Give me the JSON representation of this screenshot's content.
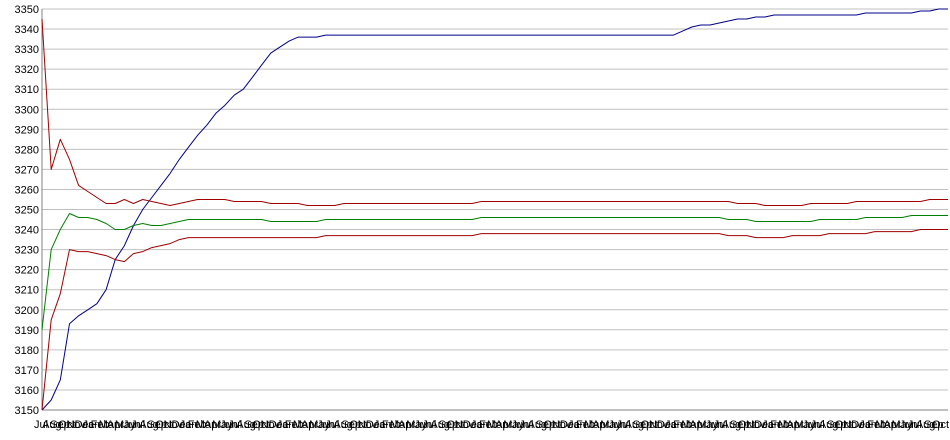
{
  "chart_data": {
    "type": "line",
    "title": "",
    "xlabel": "",
    "ylabel": "",
    "ylim": [
      3150,
      3350
    ],
    "yticks": [
      3150,
      3160,
      3170,
      3180,
      3190,
      3200,
      3210,
      3220,
      3230,
      3240,
      3250,
      3260,
      3270,
      3280,
      3290,
      3300,
      3310,
      3320,
      3330,
      3340,
      3350
    ],
    "grid": true,
    "legend": "none",
    "x_tick_labels": [
      "Jul",
      "Aug",
      "Sep",
      "Oct",
      "Nov",
      "Dec",
      "Jan",
      "Feb",
      "Mar",
      "Apr",
      "May",
      "Jun",
      "Jul",
      "Aug",
      "Sep",
      "Oct",
      "Nov",
      "Dec",
      "Jan",
      "Feb",
      "Mar",
      "Apr",
      "May",
      "Jun",
      "Jul",
      "Aug",
      "Sep",
      "Oct",
      "Nov",
      "Dec",
      "Jan",
      "Feb",
      "Mar",
      "Apr",
      "May",
      "Jun",
      "Jul",
      "Aug",
      "Sep",
      "Oct",
      "Nov",
      "Dec",
      "Jan",
      "Feb",
      "Mar",
      "Apr",
      "May",
      "Jun",
      "Jul",
      "Aug",
      "Sep",
      "Oct",
      "Nov",
      "Dec",
      "Jan",
      "Feb",
      "Mar",
      "Apr",
      "May",
      "Jun",
      "Jul",
      "Aug",
      "Sep",
      "Oct",
      "Nov",
      "Dec",
      "Jan",
      "Feb",
      "Mar",
      "Apr",
      "May",
      "Jun",
      "Jul",
      "Aug",
      "Sep",
      "Oct",
      "Nov",
      "Dec",
      "Jan",
      "Feb",
      "Mar",
      "Apr",
      "May",
      "Jun",
      "Jul",
      "Aug",
      "Sep",
      "Oct",
      "Nov",
      "Dec",
      "Jan",
      "Feb",
      "Mar",
      "Apr",
      "May",
      "Jun",
      "Jul",
      "Aug",
      "Sep",
      "Oct",
      "Nov",
      "Dec",
      "Jan",
      "Feb",
      "Mar",
      "Apr",
      "May",
      "Jun",
      "Jul",
      "Aug",
      "Sep",
      "Oct"
    ],
    "x_count": 100,
    "series": [
      {
        "color": "#00008b",
        "values": [
          3150,
          3155,
          3165,
          3193,
          3197,
          3200,
          3203,
          3210,
          3225,
          3232,
          3242,
          3250,
          3256,
          3262,
          3268,
          3275,
          3281,
          3287,
          3292,
          3298,
          3302,
          3307,
          3310,
          3316,
          3322,
          3328,
          3331,
          3334,
          3336,
          3336,
          3336,
          3337,
          3337,
          3337,
          3337,
          3337,
          3337,
          3337,
          3337,
          3337,
          3337,
          3337,
          3337,
          3337,
          3337,
          3337,
          3337,
          3337,
          3337,
          3337,
          3337,
          3337,
          3337,
          3337,
          3337,
          3337,
          3337,
          3337,
          3337,
          3337,
          3337,
          3337,
          3337,
          3337,
          3337,
          3337,
          3337,
          3337,
          3337,
          3337,
          3339,
          3341,
          3342,
          3342,
          3343,
          3344,
          3345,
          3345,
          3346,
          3346,
          3347,
          3347,
          3347,
          3347,
          3347,
          3347,
          3347,
          3347,
          3347,
          3347,
          3348,
          3348,
          3348,
          3348,
          3348,
          3348,
          3349,
          3349,
          3350,
          3350
        ]
      },
      {
        "color": "#a00000",
        "values": [
          3345,
          3270,
          3285,
          3275,
          3262,
          3259,
          3256,
          3253,
          3253,
          3255,
          3253,
          3255,
          3254,
          3253,
          3252,
          3253,
          3254,
          3255,
          3255,
          3255,
          3255,
          3254,
          3254,
          3254,
          3254,
          3253,
          3253,
          3253,
          3253,
          3252,
          3252,
          3252,
          3252,
          3253,
          3253,
          3253,
          3253,
          3253,
          3253,
          3253,
          3253,
          3253,
          3253,
          3253,
          3253,
          3253,
          3253,
          3253,
          3254,
          3254,
          3254,
          3254,
          3254,
          3254,
          3254,
          3254,
          3254,
          3254,
          3254,
          3254,
          3254,
          3254,
          3254,
          3254,
          3254,
          3254,
          3254,
          3254,
          3254,
          3254,
          3254,
          3254,
          3254,
          3254,
          3254,
          3254,
          3253,
          3253,
          3253,
          3252,
          3252,
          3252,
          3252,
          3252,
          3253,
          3253,
          3253,
          3253,
          3253,
          3254,
          3254,
          3254,
          3254,
          3254,
          3254,
          3254,
          3254,
          3255,
          3255,
          3255
        ]
      },
      {
        "color": "#008000",
        "values": [
          3190,
          3230,
          3240,
          3248,
          3246,
          3246,
          3245,
          3243,
          3240,
          3240,
          3242,
          3243,
          3242,
          3242,
          3243,
          3244,
          3245,
          3245,
          3245,
          3245,
          3245,
          3245,
          3245,
          3245,
          3245,
          3244,
          3244,
          3244,
          3244,
          3244,
          3244,
          3245,
          3245,
          3245,
          3245,
          3245,
          3245,
          3245,
          3245,
          3245,
          3245,
          3245,
          3245,
          3245,
          3245,
          3245,
          3245,
          3245,
          3246,
          3246,
          3246,
          3246,
          3246,
          3246,
          3246,
          3246,
          3246,
          3246,
          3246,
          3246,
          3246,
          3246,
          3246,
          3246,
          3246,
          3246,
          3246,
          3246,
          3246,
          3246,
          3246,
          3246,
          3246,
          3246,
          3246,
          3245,
          3245,
          3245,
          3244,
          3244,
          3244,
          3244,
          3244,
          3244,
          3244,
          3245,
          3245,
          3245,
          3245,
          3245,
          3246,
          3246,
          3246,
          3246,
          3246,
          3247,
          3247,
          3247,
          3247,
          3247
        ]
      },
      {
        "color": "#a00000",
        "values": [
          3150,
          3195,
          3208,
          3230,
          3229,
          3229,
          3228,
          3227,
          3225,
          3224,
          3228,
          3229,
          3231,
          3232,
          3233,
          3235,
          3236,
          3236,
          3236,
          3236,
          3236,
          3236,
          3236,
          3236,
          3236,
          3236,
          3236,
          3236,
          3236,
          3236,
          3236,
          3237,
          3237,
          3237,
          3237,
          3237,
          3237,
          3237,
          3237,
          3237,
          3237,
          3237,
          3237,
          3237,
          3237,
          3237,
          3237,
          3237,
          3238,
          3238,
          3238,
          3238,
          3238,
          3238,
          3238,
          3238,
          3238,
          3238,
          3238,
          3238,
          3238,
          3238,
          3238,
          3238,
          3238,
          3238,
          3238,
          3238,
          3238,
          3238,
          3238,
          3238,
          3238,
          3238,
          3238,
          3237,
          3237,
          3237,
          3236,
          3236,
          3236,
          3236,
          3237,
          3237,
          3237,
          3237,
          3238,
          3238,
          3238,
          3238,
          3238,
          3239,
          3239,
          3239,
          3239,
          3239,
          3240,
          3240,
          3240,
          3240
        ]
      }
    ]
  }
}
